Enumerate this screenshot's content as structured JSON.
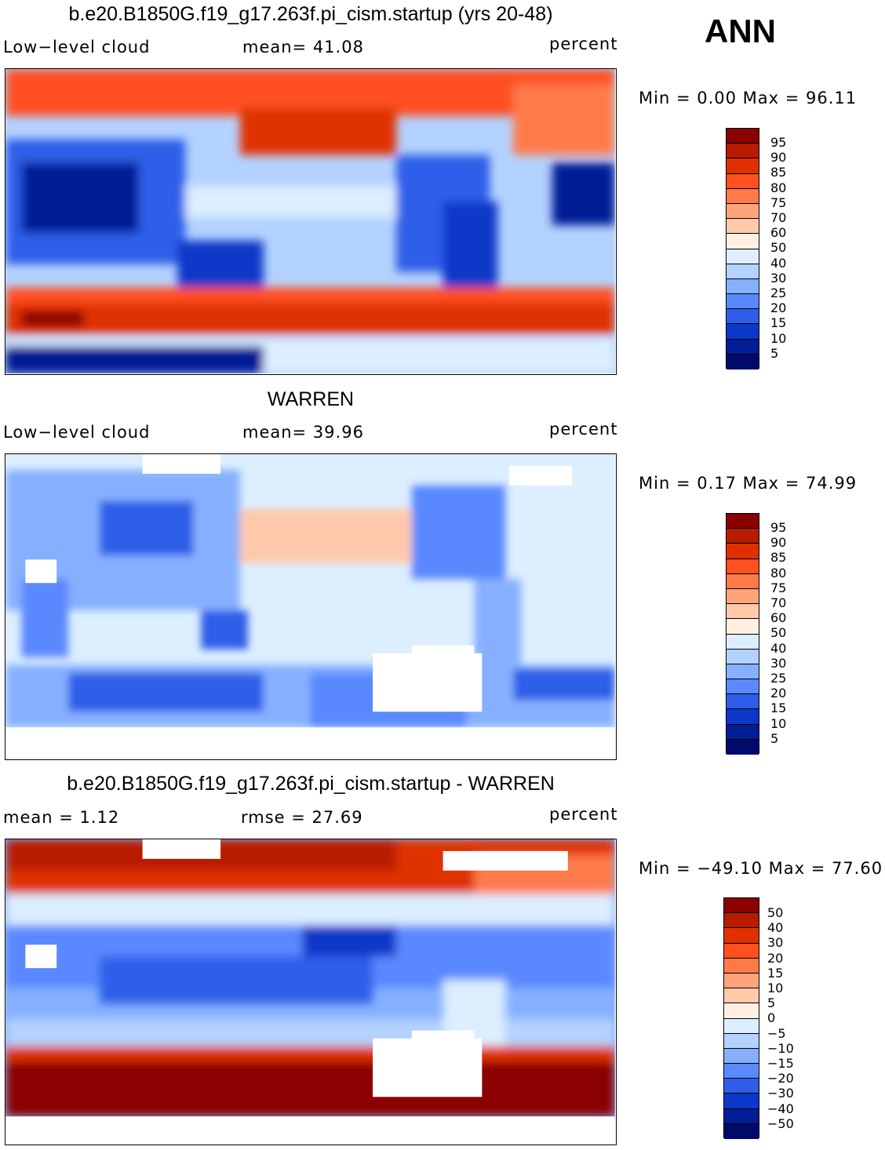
{
  "season": "ANN",
  "panels": [
    {
      "title": "b.e20.B1850G.f19_g17.263f.pi_cism.startup (yrs 20-48)",
      "left_label": "Low−level cloud",
      "mid_label": "mean=   41.08",
      "right_label": "percent",
      "minmax": "Min =    0.00 Max =   96.11"
    },
    {
      "title": "WARREN",
      "left_label": "Low−level cloud",
      "mid_label": "mean=   39.96",
      "right_label": "percent",
      "minmax": "Min =    0.17 Max =   74.99"
    },
    {
      "title": "b.e20.B1850G.f19_g17.263f.pi_cism.startup - WARREN",
      "left_label": "mean =    1.12",
      "mid_label": "rmse =   27.69",
      "right_label": "percent",
      "minmax": "Min = −49.10 Max =   77.60"
    }
  ],
  "colorbars": {
    "absolute": {
      "labels": [
        "95",
        "90",
        "85",
        "80",
        "75",
        "70",
        "60",
        "50",
        "40",
        "30",
        "25",
        "20",
        "15",
        "10",
        "5"
      ],
      "colors": [
        "#8b0000",
        "#b81b00",
        "#e03000",
        "#ff5020",
        "#ff7a48",
        "#ffa37a",
        "#ffc9aa",
        "#fff0e2",
        "#dceeff",
        "#b4d2ff",
        "#86b0ff",
        "#5a88ff",
        "#2e5ee8",
        "#0a38c8",
        "#001e96",
        "#000a6a"
      ]
    },
    "difference": {
      "labels": [
        "50",
        "40",
        "30",
        "20",
        "15",
        "10",
        "5",
        "0",
        "−5",
        "−10",
        "−15",
        "−20",
        "−30",
        "−40",
        "−50"
      ],
      "colors": [
        "#8b0000",
        "#b81b00",
        "#e03000",
        "#ff5020",
        "#ff7a48",
        "#ffa37a",
        "#ffc9aa",
        "#fff0e2",
        "#dceeff",
        "#b4d2ff",
        "#86b0ff",
        "#5a88ff",
        "#2e5ee8",
        "#0a38c8",
        "#001e96",
        "#000a6a"
      ]
    }
  }
}
